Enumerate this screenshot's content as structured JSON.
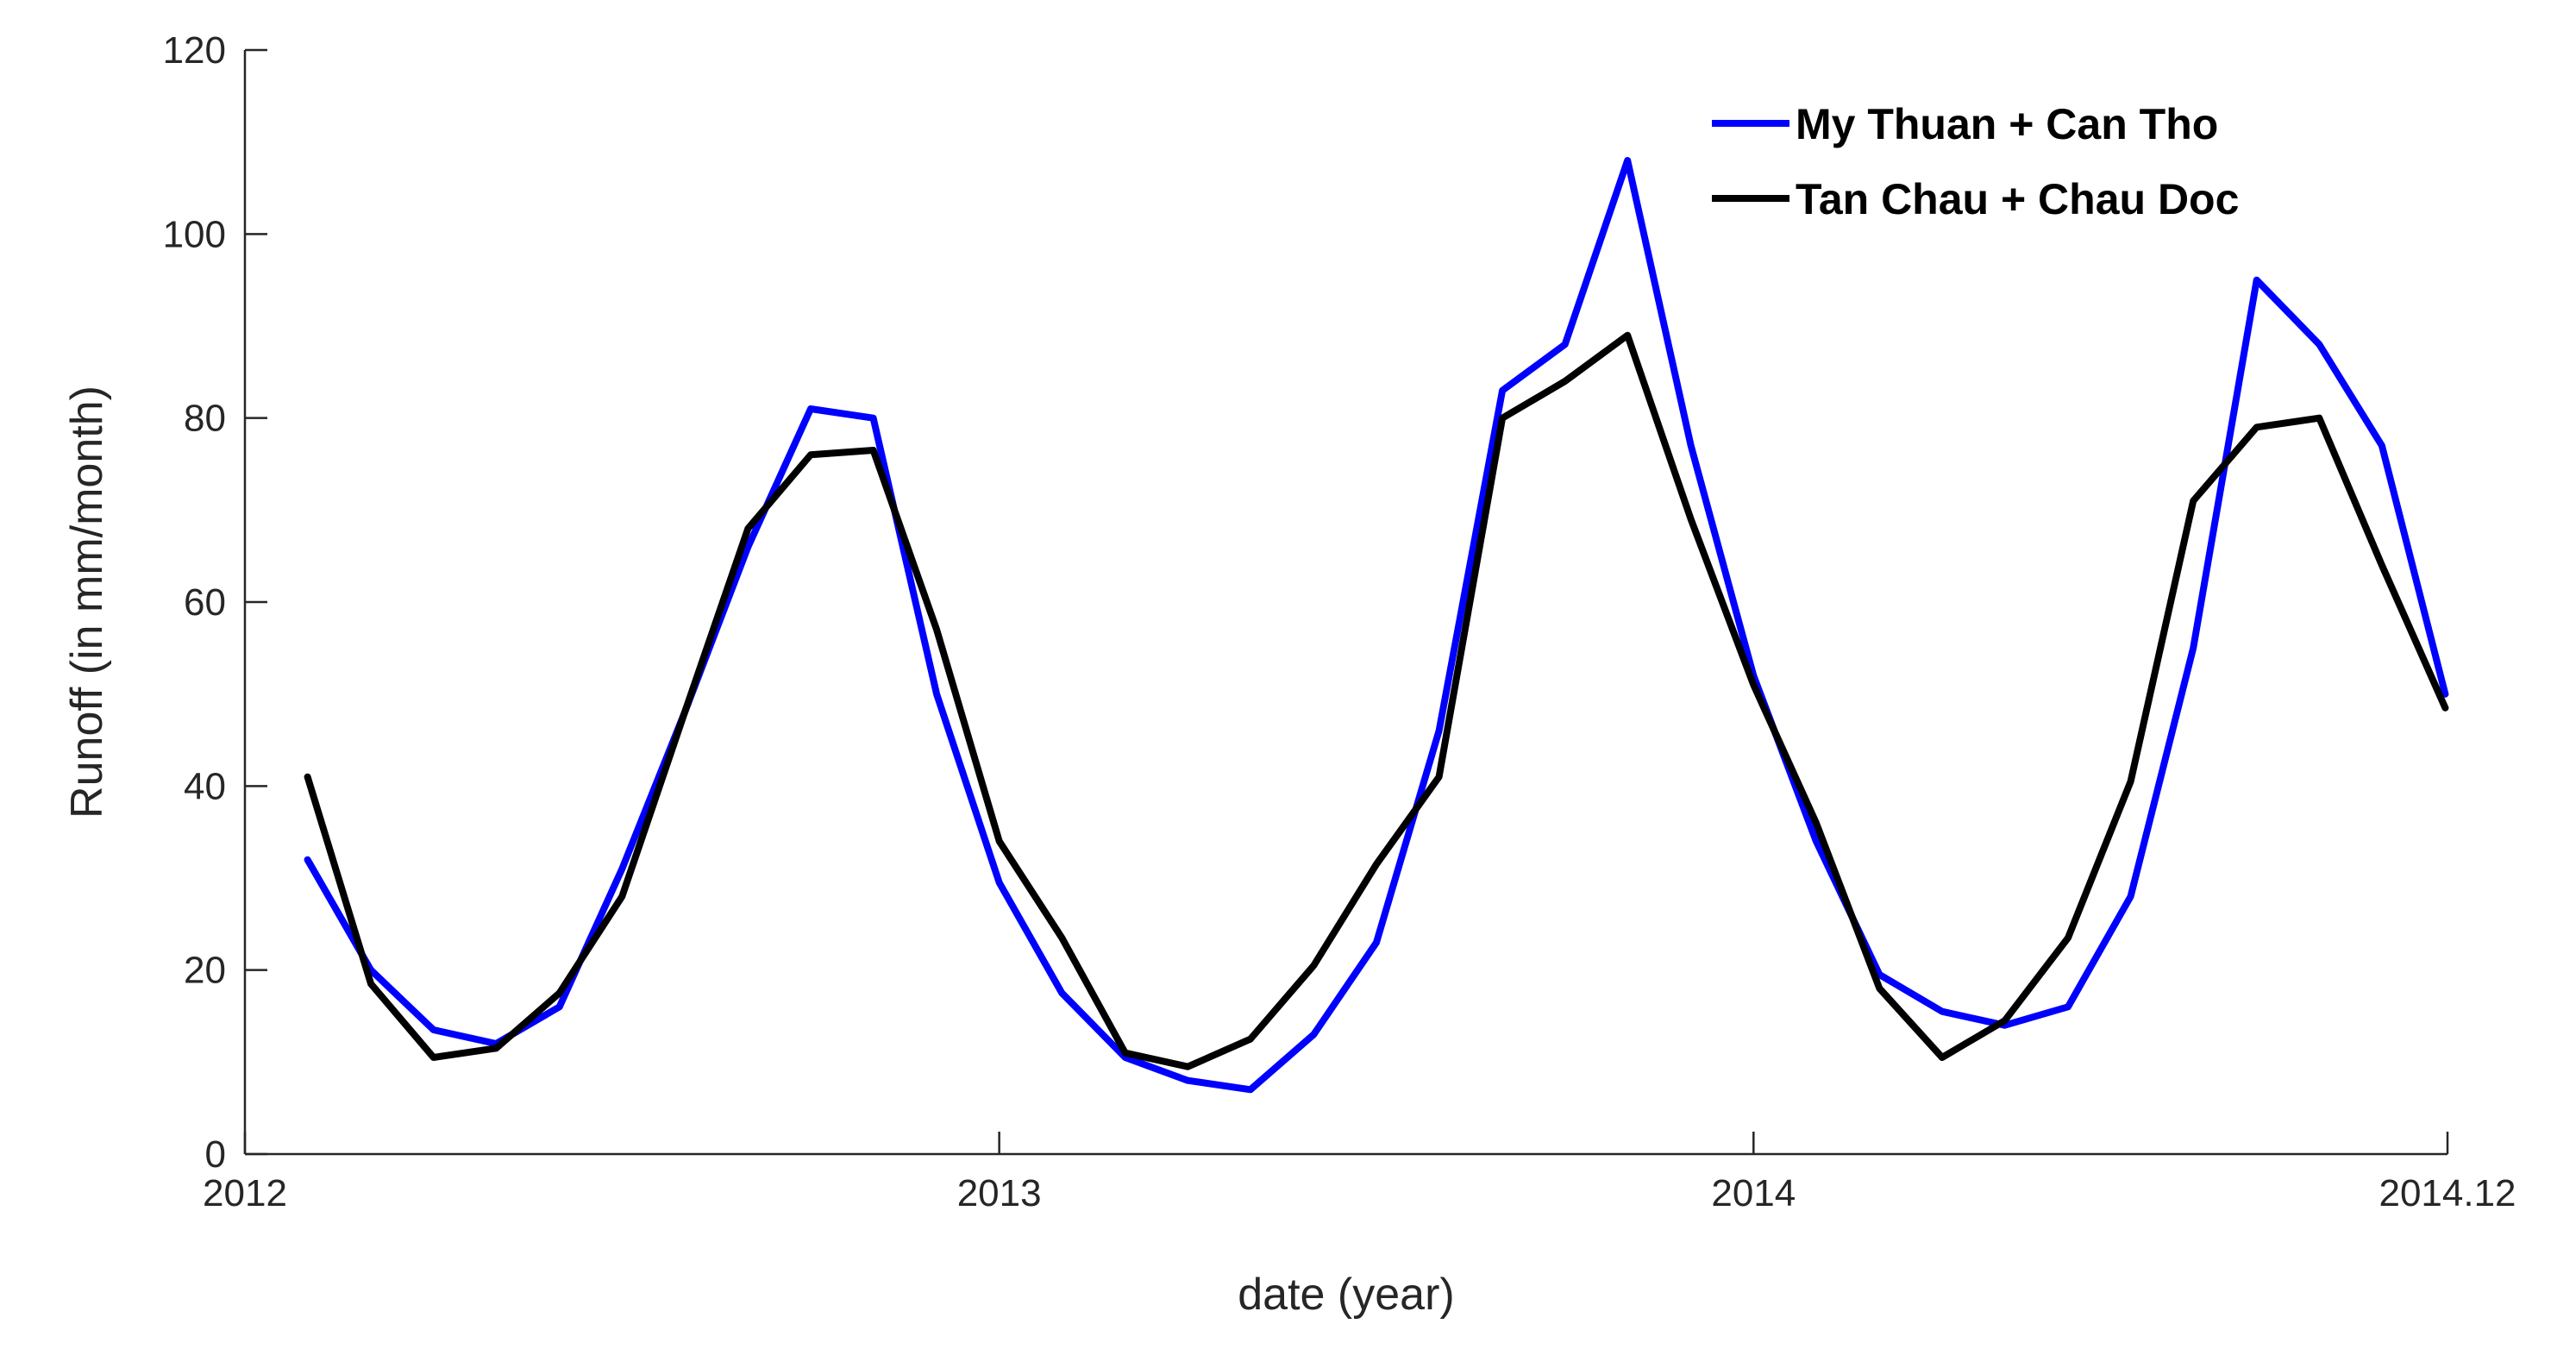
{
  "chart_data": {
    "type": "line",
    "xlabel": "date (year)",
    "ylabel": "Runoff (in mm/month)",
    "xlim": [
      2012,
      2014.92
    ],
    "ylim": [
      0,
      120
    ],
    "grid": false,
    "legend_position": "top-right",
    "x_ticks": [
      {
        "value": 2012,
        "label": "2012"
      },
      {
        "value": 2013,
        "label": "2013"
      },
      {
        "value": 2014,
        "label": "2014"
      },
      {
        "value": 2014.92,
        "label": "2014.12"
      }
    ],
    "y_ticks": [
      0,
      20,
      40,
      60,
      80,
      100,
      120
    ],
    "x": [
      2012.083,
      2012.167,
      2012.25,
      2012.333,
      2012.417,
      2012.5,
      2012.583,
      2012.667,
      2012.75,
      2012.833,
      2012.917,
      2013.0,
      2013.083,
      2013.167,
      2013.25,
      2013.333,
      2013.417,
      2013.5,
      2013.583,
      2013.667,
      2013.75,
      2013.833,
      2013.917,
      2014.0,
      2014.083,
      2014.167,
      2014.25,
      2014.333,
      2014.417,
      2014.5,
      2014.583,
      2014.667,
      2014.75,
      2014.833,
      2014.917
    ],
    "series": [
      {
        "name": "My Thuan + Can Tho",
        "color": "#0000ff",
        "values": [
          32,
          20,
          13.5,
          12,
          16,
          31,
          48,
          66,
          81,
          80,
          50,
          29.5,
          17.5,
          10.5,
          8,
          7,
          13,
          23,
          46,
          83,
          88,
          108,
          77,
          52,
          34,
          19.5,
          15.5,
          14,
          16,
          28,
          55,
          95,
          88,
          77,
          50
        ]
      },
      {
        "name": "Tan Chau + Chau Doc",
        "color": "#000000",
        "values": [
          41,
          18.5,
          10.5,
          11.5,
          17.5,
          28,
          48,
          68,
          76,
          76.5,
          57,
          34,
          23.5,
          11,
          9.5,
          12.5,
          20.5,
          31.5,
          41,
          80,
          84,
          89,
          69,
          51,
          36,
          18,
          10.5,
          14.5,
          23.5,
          40.5,
          71,
          79,
          80,
          64,
          48.5
        ]
      }
    ]
  }
}
